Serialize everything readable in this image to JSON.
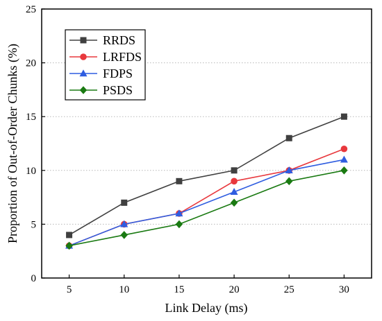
{
  "chart_data": {
    "type": "line",
    "title": "",
    "xlabel": "Link Delay (ms)",
    "ylabel": "Proportion of  Out-of-Order Chunks (%)",
    "x": [
      5,
      10,
      15,
      20,
      25,
      30
    ],
    "x_ticks": [
      "5",
      "10",
      "15",
      "20",
      "25",
      "30"
    ],
    "xlim": [
      2.5,
      32.5
    ],
    "ylim": [
      0,
      25
    ],
    "y_ticks": [
      "0",
      "5",
      "10",
      "15",
      "20",
      "25"
    ],
    "grid": "horizontal dotted",
    "legend_position": "top-left",
    "series": [
      {
        "name": "RRDS",
        "values": [
          4,
          7,
          9,
          10,
          13,
          15
        ],
        "color": "#404040",
        "marker": "square"
      },
      {
        "name": "LRFDS",
        "values": [
          3,
          5,
          6,
          9,
          10,
          12
        ],
        "color": "#e8383d",
        "marker": "circle"
      },
      {
        "name": "FDPS",
        "values": [
          3,
          5,
          6,
          8,
          10,
          11
        ],
        "color": "#2f5de0",
        "marker": "triangle"
      },
      {
        "name": "PSDS",
        "values": [
          3,
          4,
          5,
          7,
          9,
          10
        ],
        "color": "#1a7a12",
        "marker": "diamond"
      }
    ]
  }
}
